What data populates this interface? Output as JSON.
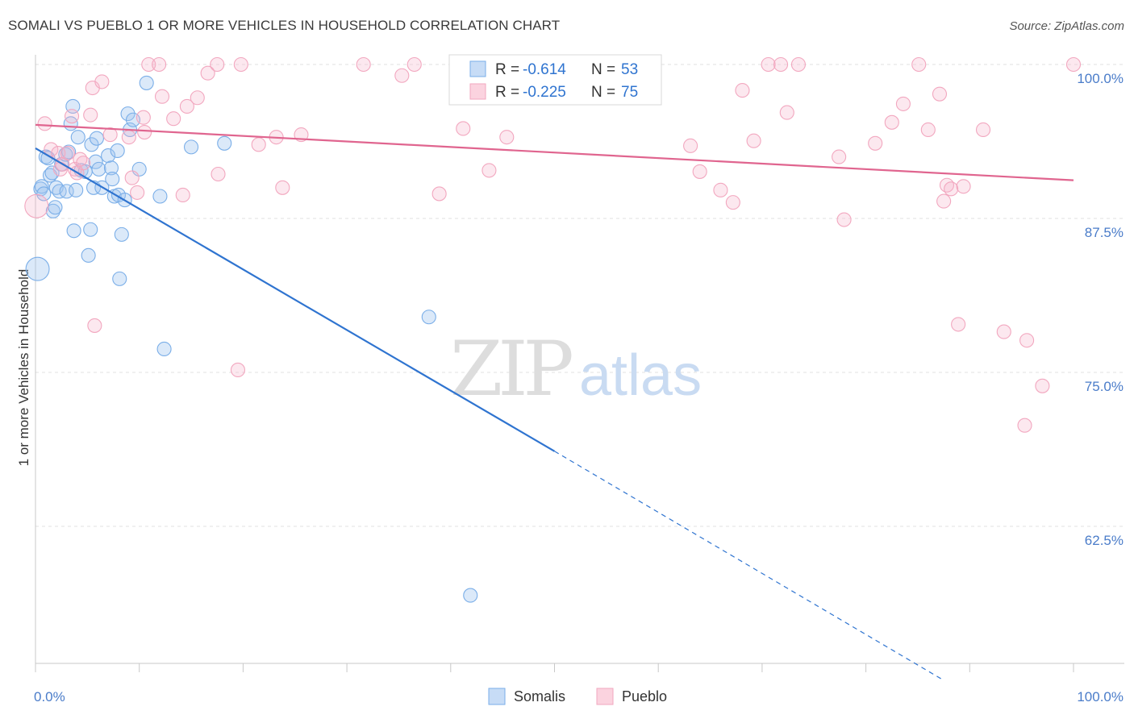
{
  "header": {
    "title": "SOMALI VS PUEBLO 1 OR MORE VEHICLES IN HOUSEHOLD CORRELATION CHART",
    "source": "Source: ZipAtlas.com"
  },
  "watermark": {
    "zip": "ZIP",
    "atlas": "atlas"
  },
  "chart_data": {
    "type": "scatter",
    "title": "SOMALI VS PUEBLO 1 OR MORE VEHICLES IN HOUSEHOLD CORRELATION CHART",
    "xlabel": "",
    "ylabel": "1 or more Vehicles in Household",
    "xlim": [
      0,
      100
    ],
    "ylim": [
      50,
      100
    ],
    "x_tick_labels": [
      {
        "value": 0,
        "label": "0.0%"
      },
      {
        "value": 100,
        "label": "100.0%"
      }
    ],
    "y_tick_labels": [
      {
        "value": 100,
        "label": "100.0%"
      },
      {
        "value": 87.5,
        "label": "87.5%"
      },
      {
        "value": 75,
        "label": "75.0%"
      },
      {
        "value": 62.5,
        "label": "62.5%"
      }
    ],
    "grid": true,
    "legend_position": "top-center",
    "stats_legend": [
      {
        "r_label": "R =",
        "r_value": "-0.614",
        "n_label": "N =",
        "n_value": "53"
      },
      {
        "r_label": "R =",
        "r_value": "-0.225",
        "n_label": "N =",
        "n_value": "75"
      }
    ],
    "series": [
      {
        "name": "Somalis",
        "color": "#7aaee8",
        "line_color": "#2f74d0",
        "trend": {
          "x": [
            0,
            50
          ],
          "y": [
            93.2,
            68.6
          ],
          "dashed_to": [
            87.5,
            50
          ]
        },
        "points": [
          [
            0.2,
            83.4,
            1.7
          ],
          [
            0.5,
            89.9,
            1.0
          ],
          [
            0.6,
            90.1,
            1.0
          ],
          [
            0.8,
            89.5,
            1.0
          ],
          [
            1.0,
            92.5,
            1.0
          ],
          [
            1.2,
            92.4,
            1.0
          ],
          [
            1.4,
            91.0,
            1.0
          ],
          [
            1.6,
            91.2,
            1.0
          ],
          [
            1.7,
            88.1,
            1.0
          ],
          [
            1.9,
            88.4,
            1.0
          ],
          [
            2.0,
            90.0,
            1.0
          ],
          [
            2.3,
            89.7,
            1.0
          ],
          [
            2.5,
            91.9,
            1.0
          ],
          [
            2.9,
            92.7,
            1.0
          ],
          [
            3.0,
            89.7,
            1.0
          ],
          [
            3.2,
            92.9,
            1.0
          ],
          [
            3.4,
            95.2,
            1.0
          ],
          [
            3.6,
            96.6,
            1.0
          ],
          [
            3.7,
            86.5,
            1.0
          ],
          [
            3.9,
            89.8,
            1.0
          ],
          [
            4.1,
            94.1,
            1.0
          ],
          [
            4.4,
            91.4,
            1.0
          ],
          [
            4.8,
            91.3,
            1.0
          ],
          [
            5.1,
            84.5,
            1.0
          ],
          [
            5.3,
            86.6,
            1.0
          ],
          [
            5.4,
            93.5,
            1.0
          ],
          [
            5.6,
            90.0,
            1.0
          ],
          [
            5.8,
            92.1,
            1.0
          ],
          [
            5.9,
            94.0,
            1.0
          ],
          [
            6.1,
            91.5,
            1.0
          ],
          [
            6.4,
            90.0,
            1.0
          ],
          [
            7.0,
            92.6,
            1.0
          ],
          [
            7.3,
            91.6,
            1.0
          ],
          [
            7.4,
            90.7,
            1.0
          ],
          [
            7.6,
            89.3,
            1.0
          ],
          [
            7.9,
            93.0,
            1.0
          ],
          [
            8.0,
            89.4,
            1.0
          ],
          [
            8.1,
            82.6,
            1.0
          ],
          [
            8.3,
            86.2,
            1.0
          ],
          [
            8.6,
            89.0,
            1.0
          ],
          [
            8.9,
            96.0,
            1.0
          ],
          [
            9.1,
            94.7,
            1.0
          ],
          [
            9.4,
            95.5,
            1.0
          ],
          [
            10.0,
            91.5,
            1.0
          ],
          [
            10.7,
            98.5,
            1.0
          ],
          [
            12.0,
            89.3,
            1.0
          ],
          [
            12.4,
            76.9,
            1.0
          ],
          [
            15.0,
            93.3,
            1.0
          ],
          [
            18.2,
            93.6,
            1.0
          ],
          [
            37.9,
            79.5,
            1.0
          ],
          [
            41.9,
            56.9,
            1.0
          ]
        ]
      },
      {
        "name": "Pueblo",
        "color": "#f2a7bf",
        "line_color": "#e0658f",
        "trend": {
          "x": [
            0,
            100
          ],
          "y": [
            95.1,
            90.6
          ]
        },
        "points": [
          [
            0.1,
            88.5,
            1.7
          ],
          [
            0.9,
            95.2,
            1.0
          ],
          [
            1.5,
            93.1,
            1.0
          ],
          [
            2.2,
            92.8,
            1.0
          ],
          [
            2.4,
            91.5,
            1.0
          ],
          [
            2.6,
            91.9,
            1.0
          ],
          [
            3.1,
            92.8,
            1.0
          ],
          [
            3.5,
            95.8,
            1.0
          ],
          [
            3.8,
            91.5,
            1.0
          ],
          [
            4.0,
            91.2,
            1.0
          ],
          [
            4.3,
            92.3,
            1.0
          ],
          [
            4.6,
            92.0,
            1.0
          ],
          [
            5.3,
            95.9,
            1.0
          ],
          [
            5.5,
            98.1,
            1.0
          ],
          [
            5.7,
            78.8,
            1.0
          ],
          [
            6.4,
            98.6,
            1.0
          ],
          [
            7.2,
            94.3,
            1.0
          ],
          [
            9.0,
            94.1,
            1.0
          ],
          [
            9.3,
            90.8,
            1.0
          ],
          [
            9.8,
            89.6,
            1.0
          ],
          [
            10.4,
            95.7,
            1.0
          ],
          [
            10.5,
            94.5,
            1.0
          ],
          [
            10.9,
            100.0,
            1.0
          ],
          [
            11.9,
            100.0,
            1.0
          ],
          [
            12.2,
            97.4,
            1.0
          ],
          [
            13.3,
            95.6,
            1.0
          ],
          [
            14.2,
            89.4,
            1.0
          ],
          [
            14.6,
            96.6,
            1.0
          ],
          [
            15.6,
            97.3,
            1.0
          ],
          [
            16.6,
            99.3,
            1.0
          ],
          [
            17.5,
            100.0,
            1.0
          ],
          [
            17.6,
            91.1,
            1.0
          ],
          [
            19.5,
            75.2,
            1.0
          ],
          [
            19.8,
            100.0,
            1.0
          ],
          [
            21.5,
            93.5,
            1.0
          ],
          [
            23.2,
            94.1,
            1.0
          ],
          [
            23.8,
            90.0,
            1.0
          ],
          [
            25.6,
            94.3,
            1.0
          ],
          [
            31.6,
            100.0,
            1.0
          ],
          [
            35.3,
            99.1,
            1.0
          ],
          [
            36.5,
            100.0,
            1.0
          ],
          [
            38.9,
            89.5,
            1.0
          ],
          [
            41.2,
            94.8,
            1.0
          ],
          [
            43.7,
            91.4,
            1.0
          ],
          [
            45.4,
            94.1,
            1.0
          ],
          [
            47.3,
            100.0,
            1.0
          ],
          [
            50.0,
            100.0,
            1.0
          ],
          [
            56.8,
            99.7,
            1.0
          ],
          [
            58.0,
            100.0,
            1.0
          ],
          [
            59.3,
            100.0,
            1.0
          ],
          [
            63.1,
            93.4,
            1.0
          ],
          [
            64.0,
            91.3,
            1.0
          ],
          [
            66.0,
            89.8,
            1.0
          ],
          [
            67.2,
            88.8,
            1.0
          ],
          [
            68.1,
            97.9,
            1.0
          ],
          [
            69.2,
            93.8,
            1.0
          ],
          [
            70.6,
            100.0,
            1.0
          ],
          [
            71.8,
            100.0,
            1.0
          ],
          [
            72.4,
            96.1,
            1.0
          ],
          [
            73.5,
            100.0,
            1.0
          ],
          [
            77.4,
            92.5,
            1.0
          ],
          [
            77.9,
            87.4,
            1.0
          ],
          [
            80.9,
            93.6,
            1.0
          ],
          [
            82.5,
            95.3,
            1.0
          ],
          [
            83.6,
            96.8,
            1.0
          ],
          [
            85.1,
            100.0,
            1.0
          ],
          [
            86.0,
            94.7,
            1.0
          ],
          [
            87.1,
            97.6,
            1.0
          ],
          [
            87.5,
            88.9,
            1.0
          ],
          [
            87.8,
            90.2,
            1.0
          ],
          [
            88.2,
            89.9,
            1.0
          ],
          [
            88.9,
            78.9,
            1.0
          ],
          [
            89.4,
            90.1,
            1.0
          ],
          [
            91.3,
            94.7,
            1.0
          ],
          [
            93.3,
            78.3,
            1.0
          ],
          [
            95.3,
            70.7,
            1.0
          ],
          [
            95.5,
            77.6,
            1.0
          ],
          [
            97.0,
            73.9,
            1.0
          ],
          [
            100.0,
            100.0,
            1.0
          ]
        ]
      }
    ]
  }
}
